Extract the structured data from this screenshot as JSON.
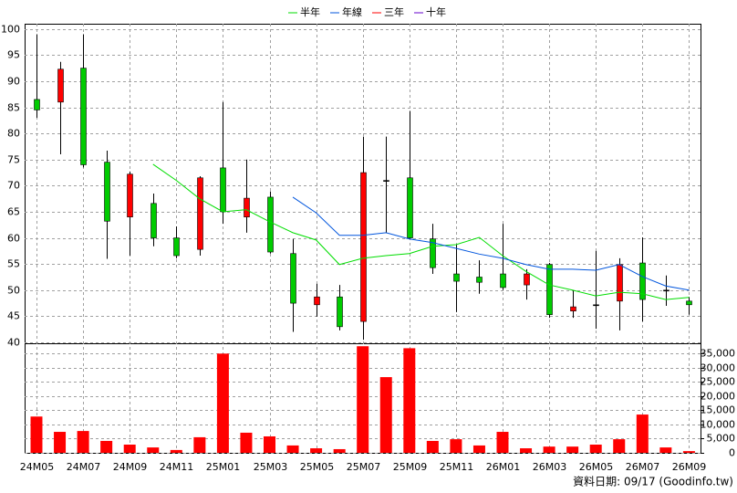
{
  "chart_data": {
    "type": "candlestick",
    "categories": [
      "24M05",
      null,
      "24M07",
      null,
      "24M09",
      null,
      "24M11",
      null,
      "25M01",
      null,
      "25M03",
      null,
      "25M05",
      null,
      "25M07",
      null,
      "25M09",
      null,
      "25M11",
      null,
      "26M01",
      null,
      "26M03",
      null,
      "26M05",
      null,
      "26M07",
      null,
      "26M09"
    ],
    "open": [
      86.5,
      86,
      92.5,
      74.5,
      64,
      66.6,
      60,
      57.8,
      73.4,
      64,
      67.8,
      57,
      47.2,
      48.7,
      44,
      71,
      71.5,
      59.8,
      53.1,
      52.5,
      53.1,
      51,
      54.9,
      46,
      47.2,
      47.9,
      55.2,
      50,
      47.9
    ],
    "high": [
      99,
      93.7,
      99,
      76.7,
      72.7,
      68.5,
      62.2,
      71.8,
      86,
      75,
      68.9,
      59.8,
      51.2,
      51,
      79.4,
      79.4,
      84.3,
      62.7,
      58.7,
      55.7,
      62.7,
      54,
      55.2,
      50,
      57.5,
      56.1,
      60.1,
      52.8,
      48.7
    ],
    "low": [
      83,
      76,
      73.5,
      56,
      56.6,
      58.4,
      56.1,
      56.6,
      62.7,
      61,
      57,
      42,
      44.9,
      42.3,
      40.5,
      61,
      59.8,
      53.1,
      45.8,
      49.3,
      50,
      48.2,
      44.7,
      44.7,
      42.6,
      42.3,
      44,
      47,
      45.3
    ],
    "close": [
      84.5,
      92.3,
      74,
      63.2,
      72.2,
      60,
      56.6,
      71.5,
      65,
      67.6,
      57.3,
      47.5,
      48.7,
      43,
      72.5,
      71,
      60,
      54.3,
      51.7,
      51.5,
      50.5,
      53.1,
      45.3,
      46.8,
      47.2,
      54.9,
      48.2,
      50,
      47.2
    ],
    "up_color": "#ff0000",
    "down_color": "#00cc00",
    "flat_color": "#000000",
    "ylim": [
      40,
      101
    ],
    "yticks": [
      40,
      45,
      50,
      55,
      60,
      65,
      70,
      75,
      80,
      85,
      90,
      95,
      100
    ],
    "grid": true,
    "series": [
      {
        "name": "半年",
        "color": "#00dd00",
        "values": [
          null,
          null,
          null,
          null,
          null,
          74.1,
          71,
          67.5,
          65,
          65.4,
          63.1,
          61,
          59.6,
          54.9,
          56.1,
          56.6,
          57,
          58.4,
          58.7,
          60.1,
          56.6,
          53.6,
          51,
          50,
          48.9,
          49.6,
          49.3,
          48.2,
          48.6
        ]
      },
      {
        "name": "年線",
        "color": "#0055dd",
        "values": [
          null,
          null,
          null,
          null,
          null,
          null,
          null,
          null,
          null,
          null,
          null,
          67.8,
          64.8,
          60.5,
          60.5,
          61,
          59.8,
          59.1,
          58,
          56.9,
          56.1,
          54.9,
          54,
          54,
          53.8,
          54.9,
          52.6,
          50.8,
          50
        ]
      },
      {
        "name": "三年",
        "color": "#ff0000",
        "values": [
          null,
          null,
          null,
          null,
          null,
          null,
          null,
          null,
          null,
          null,
          null,
          null,
          null,
          null,
          null,
          null,
          null,
          null,
          null,
          null,
          null,
          null,
          null,
          null,
          null,
          null,
          null,
          null,
          null
        ]
      },
      {
        "name": "十年",
        "color": "#6600cc",
        "values": [
          null,
          null,
          null,
          null,
          null,
          null,
          null,
          null,
          null,
          null,
          null,
          null,
          null,
          null,
          null,
          null,
          null,
          null,
          null,
          null,
          null,
          null,
          null,
          null,
          null,
          null,
          null,
          null,
          null
        ]
      }
    ],
    "volume": {
      "values": [
        12800,
        7400,
        7700,
        4200,
        2900,
        1900,
        1000,
        5500,
        35000,
        7100,
        5800,
        2600,
        1600,
        1300,
        37600,
        26700,
        36900,
        4200,
        4800,
        2600,
        7400,
        1600,
        2200,
        2200,
        2900,
        4800,
        13500,
        1900,
        600
      ],
      "color": "#ff0000",
      "ylim": [
        0,
        38000
      ],
      "yticks": [
        0,
        {
          "value": 5000,
          "label": "5,000"
        },
        {
          "value": 10000,
          "label": "10,000"
        },
        {
          "value": 15000,
          "label": "15,000"
        },
        {
          "value": 20000,
          "label": "20,000"
        },
        {
          "value": 25000,
          "label": "25,000"
        },
        {
          "value": 30000,
          "label": "30,000"
        },
        {
          "value": 35000,
          "label": "35,000"
        }
      ]
    },
    "footnote": "資料日期: 09/17 (Goodinfo.tw)"
  }
}
